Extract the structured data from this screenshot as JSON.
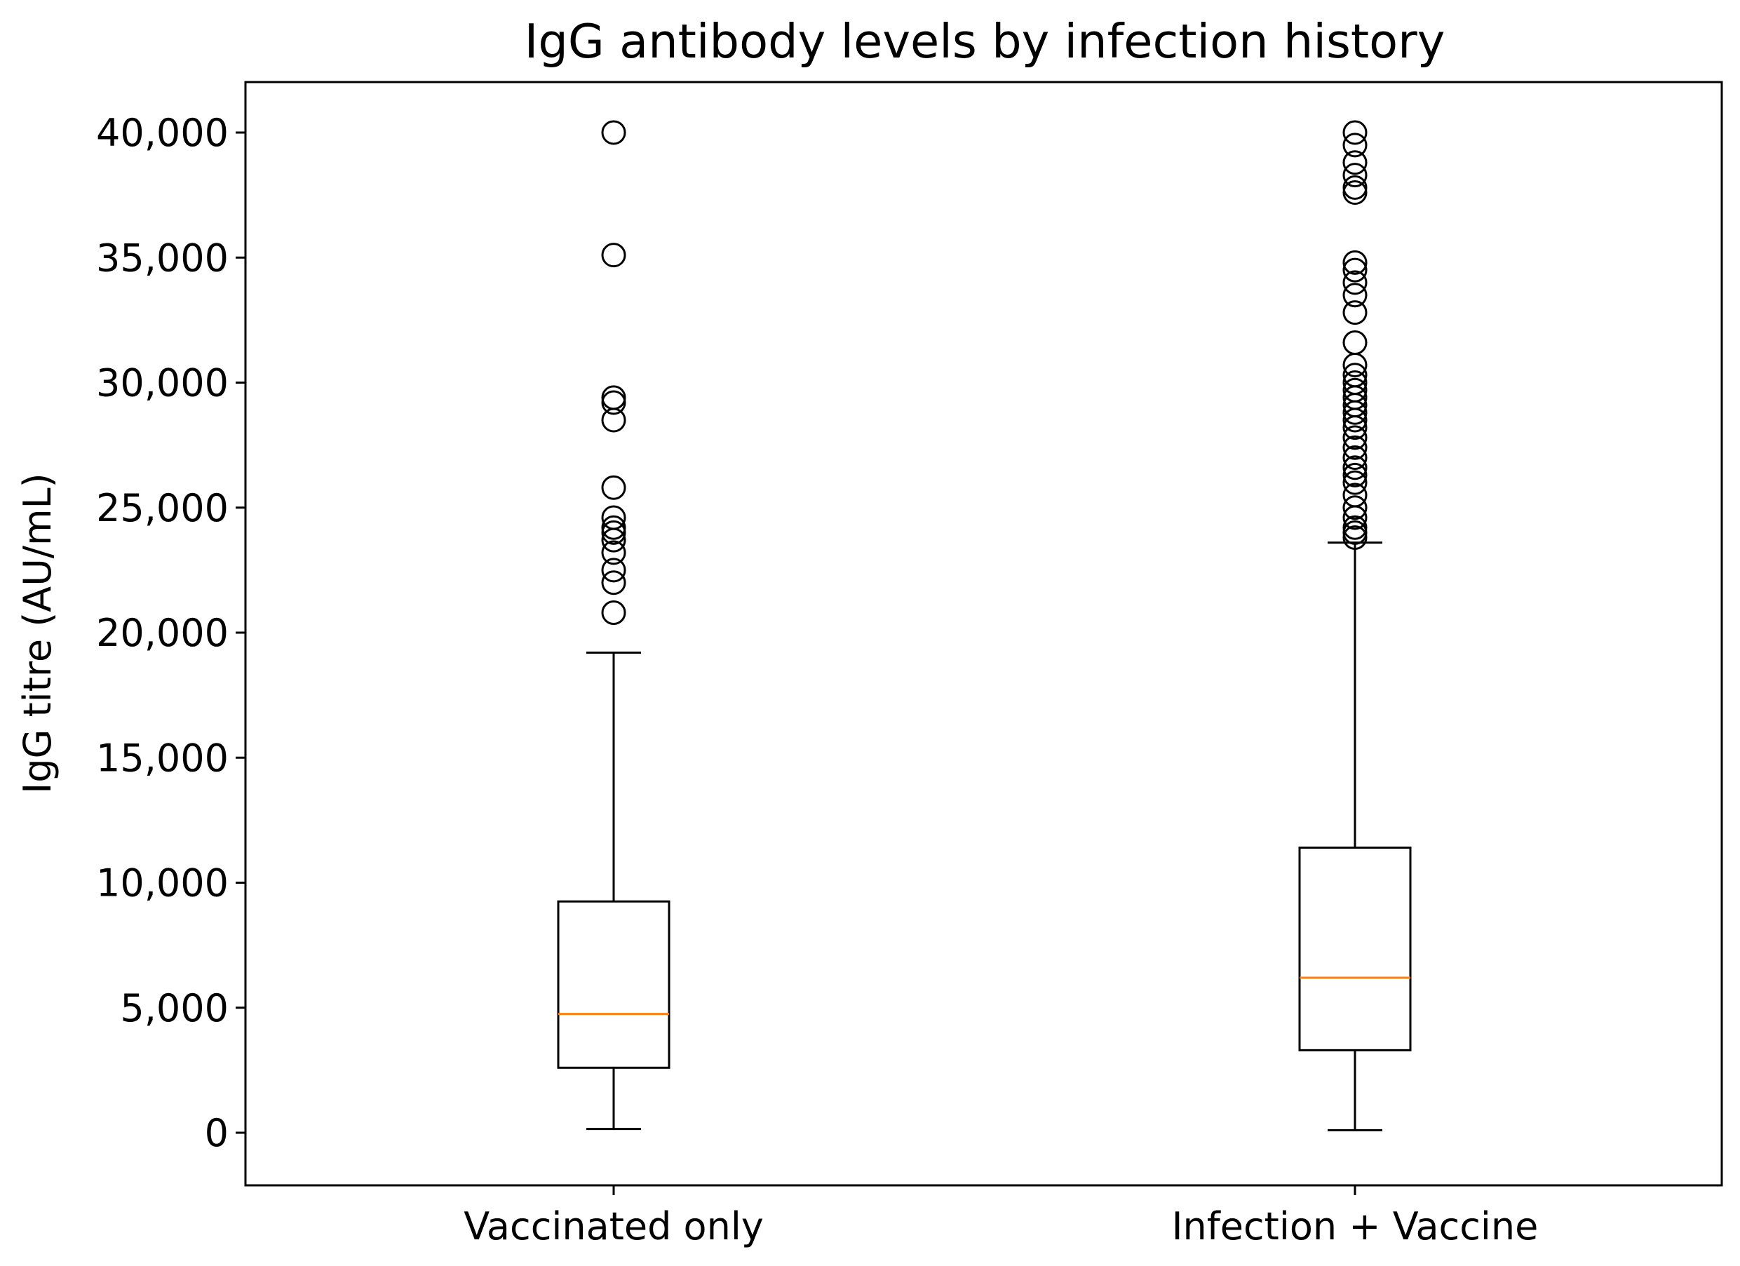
{
  "chart_data": {
    "type": "box",
    "title": "IgG antibody levels by infection history",
    "xlabel": "",
    "ylabel": "IgG titre (AU/mL)",
    "ylim": [
      -2000,
      42000
    ],
    "yticks": [
      0,
      5000,
      10000,
      15000,
      20000,
      25000,
      30000,
      35000,
      40000
    ],
    "ytick_labels": [
      "0",
      "5,000",
      "10,000",
      "15,000",
      "20,000",
      "25,000",
      "30,000",
      "35,000",
      "40,000"
    ],
    "categories": [
      "Vaccinated only",
      "Infection + Vaccine"
    ],
    "grid": false,
    "colors": {
      "box": "#000000",
      "median": "#ff7f0e",
      "whisker": "#000000",
      "flier": "#000000",
      "background": "#ffffff"
    },
    "boxes": [
      {
        "category": "Vaccinated only",
        "whisker_low": 150,
        "q1": 2600,
        "median": 4750,
        "q3": 9250,
        "whisker_high": 19200,
        "fliers": [
          40000,
          35100,
          29400,
          29200,
          28500,
          25800,
          24600,
          24200,
          24000,
          23700,
          23200,
          22500,
          22000,
          20800
        ]
      },
      {
        "category": "Infection + Vaccine",
        "whisker_low": 100,
        "q1": 3300,
        "median": 6200,
        "q3": 11400,
        "whisker_high": 23600,
        "fliers": [
          40000,
          39500,
          38800,
          38300,
          37800,
          37600,
          34800,
          34500,
          34000,
          33500,
          32800,
          31600,
          30700,
          30300,
          30000,
          29700,
          29400,
          29100,
          28800,
          28500,
          28200,
          27800,
          27400,
          27000,
          26600,
          26300,
          26000,
          25500,
          25000,
          24600,
          24200,
          24000,
          23800
        ]
      }
    ]
  }
}
